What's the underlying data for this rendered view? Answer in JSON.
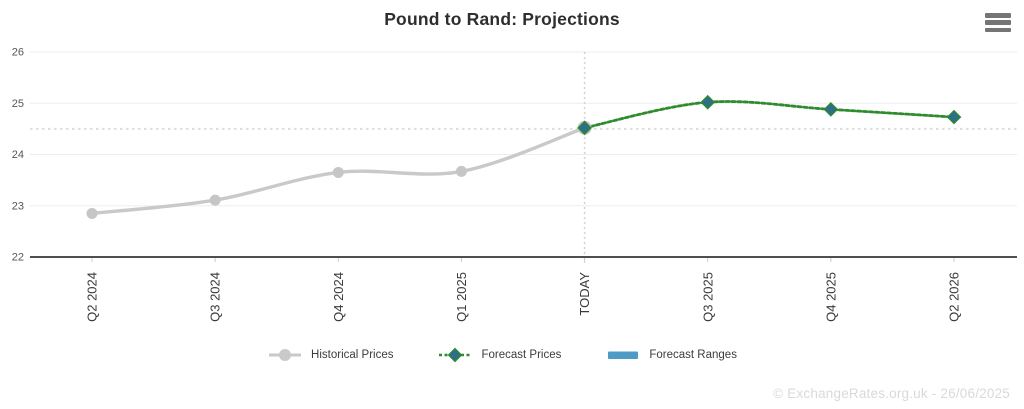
{
  "header": {
    "title": "Pound to Rand: Projections"
  },
  "toolbar": {
    "menu_icon": "hamburger-menu-icon"
  },
  "chart_data": {
    "type": "line",
    "title": "Pound to Rand: Projections",
    "categories": [
      "Q2 2024",
      "Q3 2024",
      "Q4 2024",
      "Q1 2025",
      "TODAY",
      "Q3 2025",
      "Q4 2025",
      "Q2 2026"
    ],
    "series": [
      {
        "name": "Historical Prices",
        "style": "solid",
        "marker": "circle",
        "line_color": "#c9c9c9",
        "marker_color": "#c6c6c6",
        "values": [
          22.85,
          23.11,
          23.65,
          23.67,
          24.52,
          null,
          null,
          null
        ]
      },
      {
        "name": "Forecast Prices",
        "style": "dashed",
        "marker": "diamond",
        "line_color": "#2e8b2e",
        "marker_color": "#2e6f87",
        "values": [
          null,
          null,
          null,
          null,
          24.52,
          25.02,
          24.88,
          24.73
        ]
      }
    ],
    "ylim": [
      22,
      26
    ],
    "yticks": [
      22,
      23,
      24,
      25,
      26
    ],
    "grid": true,
    "reference_lines": [
      {
        "type": "horizontal-dashed",
        "value": 24.5,
        "color": "#dedede"
      },
      {
        "type": "vertical-dotted",
        "category": "TODAY",
        "color": "#d2d2d2"
      }
    ],
    "legend_position": "bottom"
  },
  "legend": {
    "items": [
      {
        "label": "Historical Prices",
        "icon": "gray-line-circle-icon",
        "color": "#c9c9c9"
      },
      {
        "label": "Forecast Prices",
        "icon": "green-dash-diamond-icon",
        "color": "#2e8b2e"
      },
      {
        "label": "Forecast Ranges",
        "icon": "blue-bar-icon",
        "color": "#4f9bc8"
      }
    ]
  },
  "footer": {
    "watermark": "© ExchangeRates.org.uk - 26/06/2025"
  }
}
